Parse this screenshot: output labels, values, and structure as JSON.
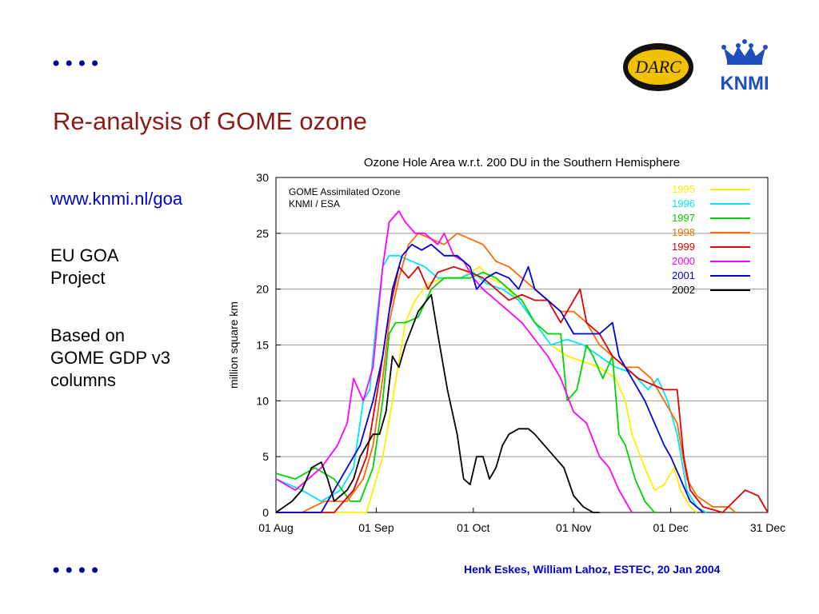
{
  "slide": {
    "dots": "••••",
    "title": "Re-analysis of GOME ozone",
    "link": "www.knmi.nl/goa",
    "project_line1": "EU GOA",
    "project_line2": "Project",
    "based_line1": "Based on",
    "based_line2": "GOME GDP v3",
    "based_line3": "columns",
    "footer": "Henk Eskes, William Lahoz, ESTEC, 20 Jan 2004",
    "logos": {
      "darc_text": "DARC",
      "knmi_text": "KNMI"
    }
  },
  "chart_data": {
    "type": "line",
    "title": "Ozone Hole Area w.r.t. 200 DU in the Southern Hemisphere",
    "xlabel": "",
    "ylabel": "million square km",
    "annotation_line1": "GOME Assimilated Ozone",
    "annotation_line2": "KNMI / ESA",
    "x_unit": "day offset from 01 Aug",
    "x_range": [
      0,
      152
    ],
    "ylim": [
      0,
      30
    ],
    "y_ticks": [
      0,
      5,
      10,
      15,
      20,
      25,
      30
    ],
    "x_ticks": [
      {
        "x": 0,
        "label": "01 Aug"
      },
      {
        "x": 31,
        "label": "01 Sep"
      },
      {
        "x": 61,
        "label": "01 Oct"
      },
      {
        "x": 92,
        "label": "01 Nov"
      },
      {
        "x": 122,
        "label": "01 Dec"
      },
      {
        "x": 152,
        "label": "31 Dec"
      }
    ],
    "grid": "horizontal",
    "legend_position": "top-right",
    "series": [
      {
        "name": "1995",
        "color": "#ffee00",
        "points": [
          [
            0,
            0
          ],
          [
            20,
            0
          ],
          [
            28,
            0
          ],
          [
            30,
            2
          ],
          [
            33,
            5
          ],
          [
            36,
            10
          ],
          [
            40,
            17
          ],
          [
            43,
            19
          ],
          [
            47,
            20.5
          ],
          [
            52,
            21
          ],
          [
            57,
            21
          ],
          [
            60,
            21.5
          ],
          [
            63,
            22
          ],
          [
            66,
            21
          ],
          [
            70,
            20.5
          ],
          [
            75,
            19
          ],
          [
            80,
            17
          ],
          [
            85,
            15
          ],
          [
            90,
            14
          ],
          [
            95,
            13.5
          ],
          [
            100,
            13
          ],
          [
            105,
            12
          ],
          [
            108,
            10
          ],
          [
            110,
            7
          ],
          [
            114,
            4
          ],
          [
            117,
            2
          ],
          [
            120,
            2.5
          ],
          [
            123,
            4
          ],
          [
            125,
            2
          ],
          [
            128,
            0.5
          ],
          [
            130,
            0
          ]
        ]
      },
      {
        "name": "1996",
        "color": "#00e5ff",
        "points": [
          [
            0,
            3
          ],
          [
            8,
            2
          ],
          [
            14,
            1
          ],
          [
            20,
            2
          ],
          [
            24,
            4
          ],
          [
            27,
            10
          ],
          [
            29,
            11
          ],
          [
            31,
            17
          ],
          [
            33,
            22
          ],
          [
            35,
            23
          ],
          [
            38,
            23
          ],
          [
            42,
            22.5
          ],
          [
            46,
            22
          ],
          [
            50,
            21
          ],
          [
            53,
            21
          ],
          [
            57,
            21
          ],
          [
            61,
            21.5
          ],
          [
            65,
            20.5
          ],
          [
            70,
            20
          ],
          [
            75,
            19
          ],
          [
            80,
            17
          ],
          [
            85,
            15
          ],
          [
            90,
            15.5
          ],
          [
            95,
            15
          ],
          [
            100,
            14
          ],
          [
            105,
            13
          ],
          [
            110,
            12.5
          ],
          [
            115,
            11
          ],
          [
            118,
            12
          ],
          [
            121,
            10
          ],
          [
            124,
            7
          ],
          [
            127,
            2
          ],
          [
            130,
            0.5
          ],
          [
            133,
            0
          ]
        ]
      },
      {
        "name": "1997",
        "color": "#00d400",
        "points": [
          [
            0,
            3.5
          ],
          [
            6,
            3
          ],
          [
            12,
            4
          ],
          [
            18,
            3
          ],
          [
            23,
            1
          ],
          [
            26,
            1
          ],
          [
            30,
            4
          ],
          [
            33,
            10
          ],
          [
            35,
            16
          ],
          [
            37,
            17
          ],
          [
            40,
            17
          ],
          [
            44,
            17.5
          ],
          [
            48,
            20
          ],
          [
            52,
            21
          ],
          [
            56,
            21
          ],
          [
            60,
            21
          ],
          [
            64,
            21.5
          ],
          [
            68,
            21
          ],
          [
            72,
            20
          ],
          [
            76,
            19
          ],
          [
            80,
            17
          ],
          [
            84,
            16
          ],
          [
            88,
            16
          ],
          [
            90,
            10
          ],
          [
            93,
            11
          ],
          [
            96,
            15
          ],
          [
            98,
            14
          ],
          [
            101,
            12
          ],
          [
            104,
            14
          ],
          [
            106,
            7
          ],
          [
            108,
            6
          ],
          [
            111,
            3
          ],
          [
            114,
            1
          ],
          [
            117,
            0
          ]
        ]
      },
      {
        "name": "1998",
        "color": "#ff6a00",
        "points": [
          [
            0,
            0
          ],
          [
            8,
            0
          ],
          [
            15,
            1
          ],
          [
            22,
            1
          ],
          [
            27,
            3
          ],
          [
            30,
            6
          ],
          [
            33,
            12
          ],
          [
            35,
            17
          ],
          [
            38,
            21
          ],
          [
            41,
            24
          ],
          [
            44,
            25
          ],
          [
            48,
            24.5
          ],
          [
            52,
            24
          ],
          [
            56,
            25
          ],
          [
            60,
            24.5
          ],
          [
            64,
            24
          ],
          [
            68,
            22.5
          ],
          [
            72,
            22
          ],
          [
            76,
            21
          ],
          [
            80,
            20
          ],
          [
            84,
            19
          ],
          [
            88,
            18
          ],
          [
            92,
            18
          ],
          [
            96,
            17
          ],
          [
            100,
            15
          ],
          [
            104,
            14
          ],
          [
            108,
            13
          ],
          [
            112,
            13
          ],
          [
            116,
            12
          ],
          [
            120,
            10
          ],
          [
            124,
            8
          ],
          [
            127,
            3
          ],
          [
            130,
            1.5
          ],
          [
            135,
            0.5
          ],
          [
            140,
            0.5
          ],
          [
            142,
            0
          ]
        ]
      },
      {
        "name": "1999",
        "color": "#e00000",
        "points": [
          [
            0,
            0
          ],
          [
            10,
            0
          ],
          [
            18,
            0
          ],
          [
            24,
            2
          ],
          [
            28,
            5
          ],
          [
            32,
            12
          ],
          [
            35,
            18
          ],
          [
            38,
            22
          ],
          [
            41,
            21
          ],
          [
            44,
            22
          ],
          [
            47,
            20
          ],
          [
            50,
            21.5
          ],
          [
            55,
            22
          ],
          [
            60,
            21.5
          ],
          [
            64,
            21
          ],
          [
            68,
            20
          ],
          [
            72,
            19
          ],
          [
            76,
            19.5
          ],
          [
            80,
            19
          ],
          [
            84,
            19
          ],
          [
            88,
            17
          ],
          [
            92,
            19
          ],
          [
            94,
            20
          ],
          [
            96,
            17
          ],
          [
            100,
            16
          ],
          [
            104,
            14
          ],
          [
            108,
            13
          ],
          [
            112,
            12
          ],
          [
            116,
            11.5
          ],
          [
            120,
            11
          ],
          [
            124,
            11
          ],
          [
            126,
            5
          ],
          [
            128,
            2
          ],
          [
            132,
            0.5
          ],
          [
            138,
            0
          ],
          [
            145,
            2
          ],
          [
            149,
            1.5
          ],
          [
            152,
            0
          ]
        ]
      },
      {
        "name": "2000",
        "color": "#ff00ff",
        "points": [
          [
            0,
            3
          ],
          [
            6,
            2
          ],
          [
            10,
            3
          ],
          [
            14,
            4
          ],
          [
            19,
            6
          ],
          [
            22,
            8
          ],
          [
            24,
            12
          ],
          [
            27,
            10
          ],
          [
            30,
            13
          ],
          [
            33,
            22
          ],
          [
            35,
            26
          ],
          [
            38,
            27
          ],
          [
            40,
            26
          ],
          [
            43,
            25
          ],
          [
            46,
            25
          ],
          [
            50,
            24
          ],
          [
            52,
            25
          ],
          [
            55,
            23
          ],
          [
            58,
            22.5
          ],
          [
            61,
            21
          ],
          [
            64,
            20
          ],
          [
            68,
            19
          ],
          [
            72,
            18
          ],
          [
            76,
            17
          ],
          [
            80,
            15.5
          ],
          [
            84,
            14
          ],
          [
            88,
            12
          ],
          [
            92,
            9
          ],
          [
            96,
            8
          ],
          [
            100,
            5
          ],
          [
            103,
            4
          ],
          [
            106,
            2
          ],
          [
            108,
            1
          ],
          [
            110,
            0
          ]
        ]
      },
      {
        "name": "2001",
        "color": "#0000dd",
        "points": [
          [
            0,
            0
          ],
          [
            8,
            0
          ],
          [
            14,
            0
          ],
          [
            18,
            2
          ],
          [
            22,
            4
          ],
          [
            26,
            6
          ],
          [
            30,
            10
          ],
          [
            33,
            14
          ],
          [
            36,
            20
          ],
          [
            39,
            23
          ],
          [
            42,
            24
          ],
          [
            45,
            23.5
          ],
          [
            48,
            24
          ],
          [
            52,
            23
          ],
          [
            56,
            23
          ],
          [
            60,
            22
          ],
          [
            62,
            20
          ],
          [
            65,
            21
          ],
          [
            68,
            21.5
          ],
          [
            72,
            21
          ],
          [
            75,
            20
          ],
          [
            78,
            22
          ],
          [
            80,
            20
          ],
          [
            84,
            19
          ],
          [
            88,
            18
          ],
          [
            92,
            16
          ],
          [
            96,
            16
          ],
          [
            100,
            16
          ],
          [
            104,
            17
          ],
          [
            106,
            14
          ],
          [
            110,
            12
          ],
          [
            114,
            10
          ],
          [
            117,
            8
          ],
          [
            120,
            6
          ],
          [
            122,
            5
          ],
          [
            125,
            3
          ],
          [
            128,
            1
          ],
          [
            132,
            0
          ]
        ]
      },
      {
        "name": "2002",
        "color": "#000000",
        "points": [
          [
            0,
            0
          ],
          [
            5,
            1
          ],
          [
            8,
            2
          ],
          [
            11,
            4
          ],
          [
            14,
            4.5
          ],
          [
            16,
            3
          ],
          [
            18,
            1
          ],
          [
            22,
            2
          ],
          [
            24,
            3
          ],
          [
            26,
            5
          ],
          [
            28,
            6
          ],
          [
            30,
            7
          ],
          [
            32,
            7
          ],
          [
            34,
            9
          ],
          [
            36,
            14
          ],
          [
            38,
            13
          ],
          [
            40,
            15
          ],
          [
            44,
            18
          ],
          [
            48,
            19.5
          ],
          [
            50,
            16
          ],
          [
            53,
            11
          ],
          [
            56,
            7
          ],
          [
            58,
            3
          ],
          [
            60,
            2.5
          ],
          [
            62,
            5
          ],
          [
            64,
            5
          ],
          [
            66,
            3
          ],
          [
            68,
            4
          ],
          [
            70,
            6
          ],
          [
            72,
            7
          ],
          [
            75,
            7.5
          ],
          [
            78,
            7.5
          ],
          [
            80,
            7
          ],
          [
            83,
            6
          ],
          [
            86,
            5
          ],
          [
            89,
            4
          ],
          [
            92,
            1.5
          ],
          [
            95,
            0.5
          ],
          [
            98,
            0
          ],
          [
            100,
            0
          ]
        ]
      }
    ]
  }
}
